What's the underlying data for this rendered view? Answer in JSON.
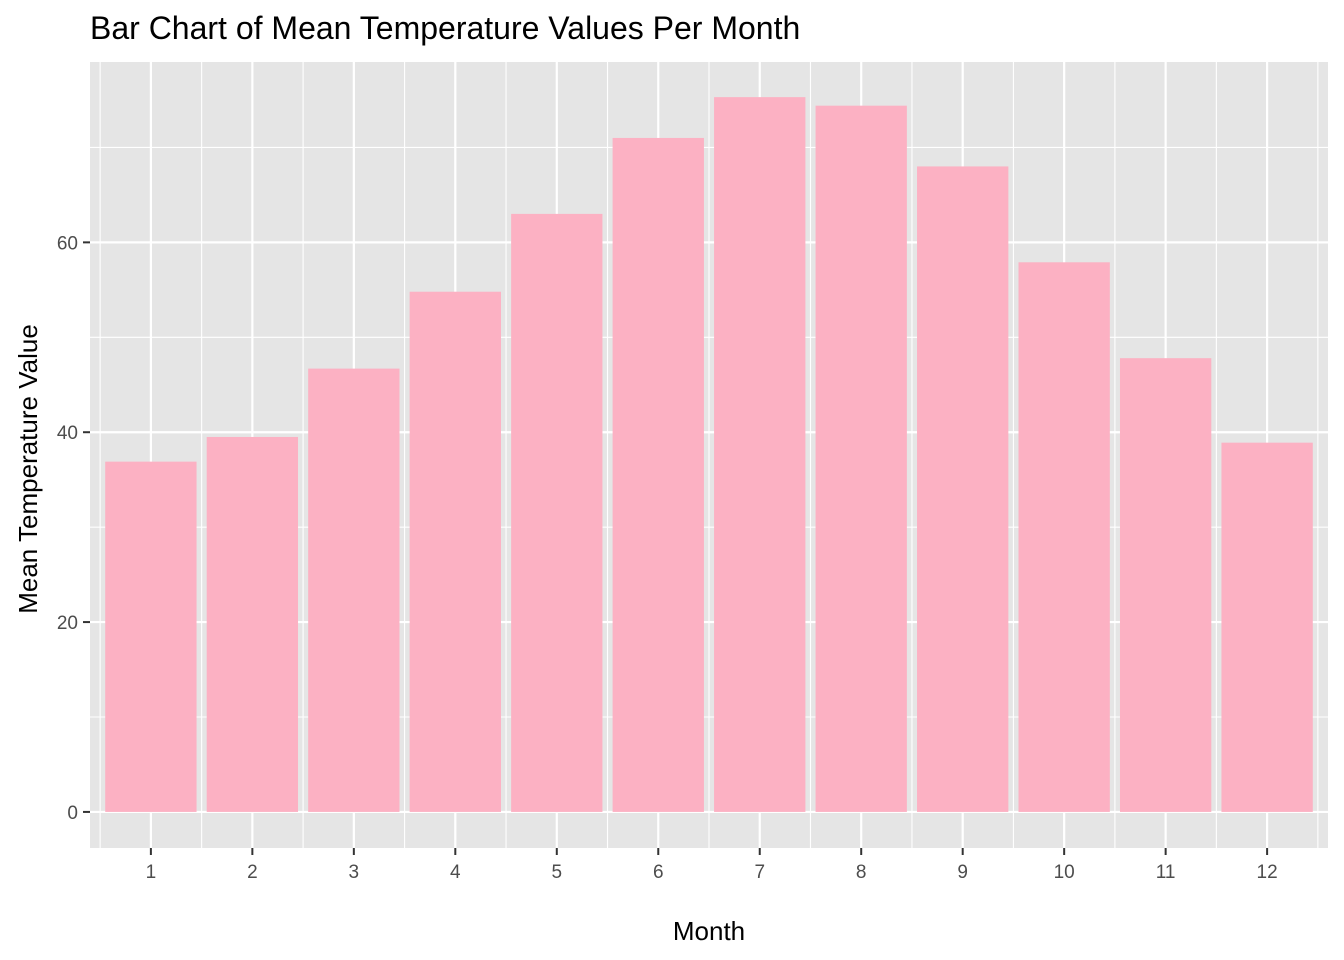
{
  "chart_data": {
    "type": "bar",
    "title": "Bar Chart of Mean Temperature Values Per Month",
    "xlabel": "Month",
    "ylabel": "Mean Temperature Value",
    "categories": [
      "1",
      "2",
      "3",
      "4",
      "5",
      "6",
      "7",
      "8",
      "9",
      "10",
      "11",
      "12"
    ],
    "values": [
      36.9,
      39.5,
      46.7,
      54.8,
      63.0,
      71.0,
      75.3,
      74.4,
      68.0,
      57.9,
      47.8,
      38.9
    ],
    "ylim": [
      -3.8,
      79.0
    ],
    "y_ticks": [
      0,
      20,
      40,
      60
    ],
    "y_tick_labels": [
      "0",
      "20",
      "40",
      "60"
    ],
    "grid": true,
    "legend": "none",
    "colors": {
      "bar": "#fcb1c3",
      "panel_background": "#e5e5e5",
      "grid": "#ffffff"
    }
  }
}
